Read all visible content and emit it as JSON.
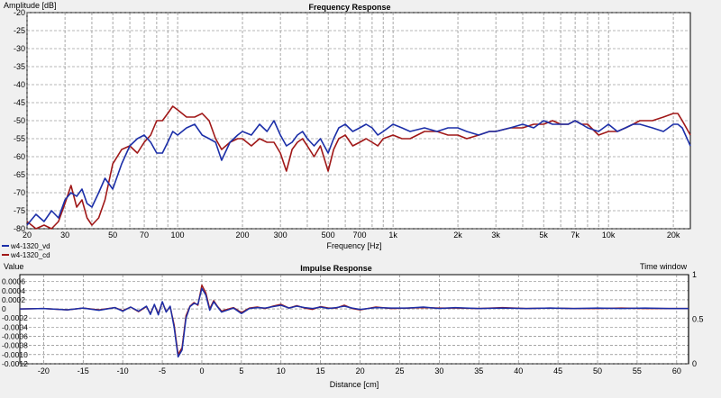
{
  "colors": {
    "background": "#f0f0f0",
    "plot_bg": "#ffffff",
    "grid": "#707070",
    "series1": "#1c2fa8",
    "series2": "#a01818"
  },
  "chart_data": [
    {
      "type": "line",
      "title": "Frequency Response",
      "ylabel": "Amplitude [dB]",
      "xlabel": "Frequency [Hz]",
      "xscale": "log",
      "xlim": [
        20,
        24000
      ],
      "ylim": [
        -80,
        -20
      ],
      "grid": true,
      "x_ticks": [
        {
          "v": 20,
          "label": "20"
        },
        {
          "v": 30,
          "label": "30"
        },
        {
          "v": 50,
          "label": "50"
        },
        {
          "v": 70,
          "label": "70"
        },
        {
          "v": 100,
          "label": "100"
        },
        {
          "v": 200,
          "label": "200"
        },
        {
          "v": 300,
          "label": "300"
        },
        {
          "v": 500,
          "label": "500"
        },
        {
          "v": 700,
          "label": "700"
        },
        {
          "v": 1000,
          "label": "1k"
        },
        {
          "v": 2000,
          "label": "2k"
        },
        {
          "v": 3000,
          "label": "3k"
        },
        {
          "v": 5000,
          "label": "5k"
        },
        {
          "v": 7000,
          "label": "7k"
        },
        {
          "v": 10000,
          "label": "10k"
        },
        {
          "v": 20000,
          "label": "20k"
        }
      ],
      "y_ticks": [
        -20,
        -25,
        -30,
        -35,
        -40,
        -45,
        -50,
        -55,
        -60,
        -65,
        -70,
        -75,
        -80
      ],
      "legend_position": "bottom-left",
      "series": [
        {
          "name": "w4-1320_vd",
          "color": "#1c2fa8",
          "x": [
            20,
            22,
            24,
            26,
            28,
            30,
            32,
            34,
            36,
            38,
            40,
            43,
            46,
            50,
            55,
            60,
            65,
            70,
            75,
            80,
            85,
            90,
            95,
            100,
            110,
            120,
            130,
            140,
            150,
            160,
            175,
            190,
            200,
            220,
            240,
            260,
            280,
            300,
            320,
            340,
            360,
            380,
            400,
            430,
            460,
            500,
            530,
            560,
            600,
            650,
            700,
            750,
            800,
            850,
            900,
            1000,
            1100,
            1200,
            1400,
            1600,
            1800,
            2000,
            2200,
            2500,
            2800,
            3000,
            3500,
            4000,
            4500,
            5000,
            5500,
            6000,
            6500,
            7000,
            7500,
            8000,
            9000,
            10000,
            11000,
            12000,
            13000,
            14000,
            16000,
            18000,
            20000,
            21000,
            22000,
            24000
          ],
          "y": [
            -79,
            -76,
            -78,
            -75,
            -77,
            -72,
            -70,
            -71,
            -69,
            -73,
            -74,
            -70,
            -66,
            -69,
            -62,
            -57,
            -55,
            -54,
            -56,
            -59,
            -59,
            -56,
            -53,
            -54,
            -52,
            -51,
            -54,
            -55,
            -56,
            -61,
            -56,
            -54,
            -53,
            -54,
            -51,
            -53,
            -50,
            -54,
            -57,
            -56,
            -54,
            -53,
            -55,
            -57,
            -55,
            -59,
            -55,
            -52,
            -51,
            -53,
            -52,
            -51,
            -52,
            -54,
            -53,
            -51,
            -52,
            -53,
            -52,
            -53,
            -52,
            -52,
            -53,
            -54,
            -53,
            -53,
            -52,
            -51,
            -52,
            -50,
            -51,
            -51,
            -51,
            -50,
            -51,
            -52,
            -53,
            -51,
            -53,
            -52,
            -51,
            -51,
            -52,
            -53,
            -51,
            -51,
            -52,
            -57
          ]
        },
        {
          "name": "w4-1320_cd",
          "color": "#a01818",
          "x": [
            20,
            22,
            24,
            26,
            28,
            30,
            32,
            34,
            36,
            38,
            40,
            43,
            46,
            50,
            55,
            60,
            65,
            70,
            75,
            80,
            85,
            90,
            95,
            100,
            110,
            120,
            130,
            140,
            150,
            160,
            175,
            190,
            200,
            220,
            240,
            260,
            280,
            300,
            320,
            340,
            360,
            380,
            400,
            430,
            460,
            500,
            530,
            560,
            600,
            650,
            700,
            750,
            800,
            850,
            900,
            1000,
            1100,
            1200,
            1400,
            1600,
            1800,
            2000,
            2200,
            2500,
            2800,
            3000,
            3500,
            4000,
            4500,
            5000,
            5500,
            6000,
            6500,
            7000,
            7500,
            8000,
            9000,
            10000,
            11000,
            12000,
            13000,
            14000,
            16000,
            18000,
            20000,
            21000,
            22000,
            24000
          ],
          "y": [
            -78,
            -80,
            -79,
            -80,
            -78,
            -73,
            -68,
            -74,
            -72,
            -77,
            -79,
            -77,
            -72,
            -62,
            -58,
            -57,
            -59,
            -56,
            -54,
            -50,
            -50,
            -48,
            -46,
            -47,
            -49,
            -49,
            -48,
            -50,
            -55,
            -58,
            -56,
            -55,
            -55,
            -57,
            -55,
            -56,
            -56,
            -59,
            -64,
            -58,
            -56,
            -55,
            -57,
            -60,
            -57,
            -64,
            -58,
            -55,
            -54,
            -57,
            -56,
            -55,
            -56,
            -57,
            -55,
            -54,
            -55,
            -55,
            -53,
            -53,
            -54,
            -54,
            -55,
            -54,
            -53,
            -53,
            -52,
            -52,
            -51,
            -51,
            -50,
            -51,
            -51,
            -50,
            -51,
            -51,
            -54,
            -53,
            -53,
            -52,
            -51,
            -50,
            -50,
            -49,
            -48,
            -48,
            -50,
            -54
          ]
        }
      ]
    },
    {
      "type": "line",
      "title": "Impulse Response",
      "ylabel": "Value",
      "y2label": "Time window",
      "xlabel": "Distance [cm]",
      "xlim": [
        -23,
        61.5
      ],
      "ylim": [
        -0.0012,
        0.00075
      ],
      "y2lim": [
        0,
        1
      ],
      "grid": true,
      "x_ticks": [
        -20,
        -15,
        -10,
        -5,
        0,
        5,
        10,
        15,
        20,
        25,
        30,
        35,
        40,
        45,
        50,
        55,
        60
      ],
      "y_ticks": [
        {
          "v": 0.0006,
          "label": "0.0006"
        },
        {
          "v": 0.0004,
          "label": "0.0004"
        },
        {
          "v": 0.0002,
          "label": "0.0002"
        },
        {
          "v": 0,
          "label": "0"
        },
        {
          "v": -0.0002,
          "label": "-0.0002"
        },
        {
          "v": -0.0004,
          "label": "-0.0004"
        },
        {
          "v": -0.0006,
          "label": "-0.0006"
        },
        {
          "v": -0.0008,
          "label": "-0.0008"
        },
        {
          "v": -0.001,
          "label": "-0.0010"
        },
        {
          "v": -0.0012,
          "label": "-0.0012"
        }
      ],
      "y2_ticks": [
        {
          "v": 1,
          "label": "1"
        },
        {
          "v": 0.5,
          "label": "0.5"
        },
        {
          "v": 0,
          "label": "0"
        }
      ],
      "series": [
        {
          "name": "w4-1320_vd",
          "color": "#1c2fa8",
          "x": [
            -23,
            -20,
            -17,
            -15,
            -13,
            -11,
            -10,
            -9,
            -8,
            -7,
            -6.5,
            -6,
            -5.5,
            -5,
            -4.5,
            -4,
            -3.5,
            -3,
            -2.5,
            -2,
            -1.5,
            -1,
            -0.5,
            0,
            0.5,
            1,
            1.5,
            2,
            2.5,
            3,
            4,
            5,
            6,
            7,
            8,
            9,
            10,
            11,
            12,
            13,
            14,
            15,
            16,
            17,
            18,
            19,
            20,
            22,
            24,
            26,
            28,
            30,
            32,
            35,
            38,
            41,
            44,
            47,
            50,
            53,
            56,
            59,
            61.5
          ],
          "y": [
            0,
            1e-05,
            -2e-05,
            2e-05,
            -3e-05,
            3e-05,
            -5e-05,
            4e-05,
            -5e-05,
            6e-05,
            -0.00012,
            0.0001,
            -0.00013,
            0.00016,
            -7e-05,
            6e-05,
            -0.0004,
            -0.00105,
            -0.0009,
            -0.0002,
            5e-05,
            0.00012,
            0.0001,
            0.00045,
            0.0003,
            -3e-05,
            0.00016,
            4e-05,
            -7e-05,
            -4e-05,
            2e-05,
            -0.0001,
            1e-05,
            3e-05,
            2e-05,
            5e-05,
            8e-05,
            2e-05,
            6e-05,
            3e-05,
            1e-05,
            4e-05,
            1e-05,
            3e-05,
            6e-05,
            2e-05,
            -1e-05,
            3e-05,
            2e-05,
            2e-05,
            4e-05,
            1e-05,
            3e-05,
            1e-05,
            2e-05,
            1e-05,
            2e-05,
            1e-05,
            2e-05,
            1e-05,
            2e-05,
            1e-05,
            1e-05
          ]
        },
        {
          "name": "w4-1320_cd",
          "color": "#a01818",
          "x": [
            -23,
            -20,
            -17,
            -15,
            -13,
            -11,
            -10,
            -9,
            -8,
            -7,
            -6.5,
            -6,
            -5.5,
            -5,
            -4.5,
            -4,
            -3.5,
            -3,
            -2.5,
            -2,
            -1.5,
            -1,
            -0.5,
            0,
            0.5,
            1,
            1.5,
            2,
            2.5,
            3,
            4,
            5,
            6,
            7,
            8,
            9,
            10,
            11,
            12,
            13,
            14,
            15,
            16,
            17,
            18,
            19,
            20,
            22,
            24,
            26,
            28,
            30,
            32,
            35,
            38,
            41,
            44,
            47,
            50,
            53,
            56,
            59,
            61.5
          ],
          "y": [
            0,
            1e-05,
            -2e-05,
            2e-05,
            -2e-05,
            3e-05,
            -4e-05,
            4e-05,
            -6e-05,
            5e-05,
            -0.0001,
            9e-05,
            -0.0001,
            0.00015,
            -6e-05,
            5e-05,
            -0.00035,
            -0.001,
            -0.00085,
            -0.00015,
            6e-05,
            0.00014,
            8e-05,
            0.00052,
            0.00035,
            0,
            0.00018,
            5e-05,
            -5e-05,
            -2e-05,
            3e-05,
            -8e-05,
            2e-05,
            4e-05,
            1e-05,
            6e-05,
            0.0001,
            2e-05,
            7e-05,
            2e-05,
            -1e-05,
            5e-05,
            2e-05,
            2e-05,
            8e-05,
            1e-05,
            -2e-05,
            4e-05,
            1e-05,
            2e-05,
            3e-05,
            2e-05,
            2e-05,
            1e-05,
            3e-05,
            1e-05,
            2e-05,
            1e-05,
            1e-05,
            2e-05,
            1e-05,
            1e-05,
            1e-05
          ]
        }
      ]
    }
  ]
}
